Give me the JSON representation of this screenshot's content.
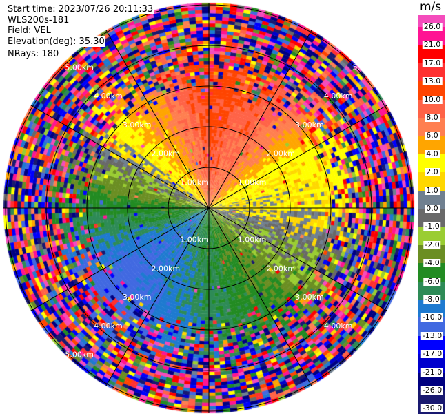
{
  "header": {
    "start_time": "Start time: 2023/07/26 20:11:33",
    "instrument": "WLS200s-181",
    "field": "Field: VEL",
    "elevation": "Elevation(deg): 35.30",
    "nrays": "NRays: 180"
  },
  "chart_data": {
    "type": "heatmap",
    "projection": "polar PPI",
    "field": "VEL",
    "unit": "m/s",
    "nrays": 180,
    "elevation_deg": 35.3,
    "range_rings_km": [
      1,
      2,
      3,
      4,
      5
    ],
    "range_ring_labels": [
      "1.00km",
      "2.00km",
      "3.00km",
      "4.00km",
      "5.00km"
    ],
    "radial_spoke_spacing_deg": 30,
    "colorbar": {
      "title": "m/s",
      "tick_labels": [
        "26.0",
        "21.0",
        "17.0",
        "13.0",
        "10.0",
        "8.0",
        "6.0",
        "4.0",
        "2.0",
        "1.0",
        "0.0",
        "-1.0",
        "-2.0",
        "-4.0",
        "-6.0",
        "-8.0",
        "-10.0",
        "-13.0",
        "-17.0",
        "-21.0",
        "-26.0",
        "-30.0"
      ],
      "thresholds": [
        26,
        21,
        17,
        13,
        10,
        8,
        6,
        4,
        2,
        1,
        0,
        -1,
        -2,
        -4,
        -6,
        -8,
        -10,
        -13,
        -17,
        -21,
        -26,
        -30
      ],
      "colors": [
        "#f44cbc",
        "#ff1493",
        "#ff0000",
        "#ff3030",
        "#ff4500",
        "#ff6347",
        "#ff7f50",
        "#ffa500",
        "#ffff00",
        "#ffd700",
        "#708090",
        "#696969",
        "#9acd32",
        "#6b8e23",
        "#228b22",
        "#2e8b57",
        "#1e7ad0",
        "#4169e1",
        "#0000ff",
        "#0000cd",
        "#000080",
        "#191970"
      ]
    }
  }
}
